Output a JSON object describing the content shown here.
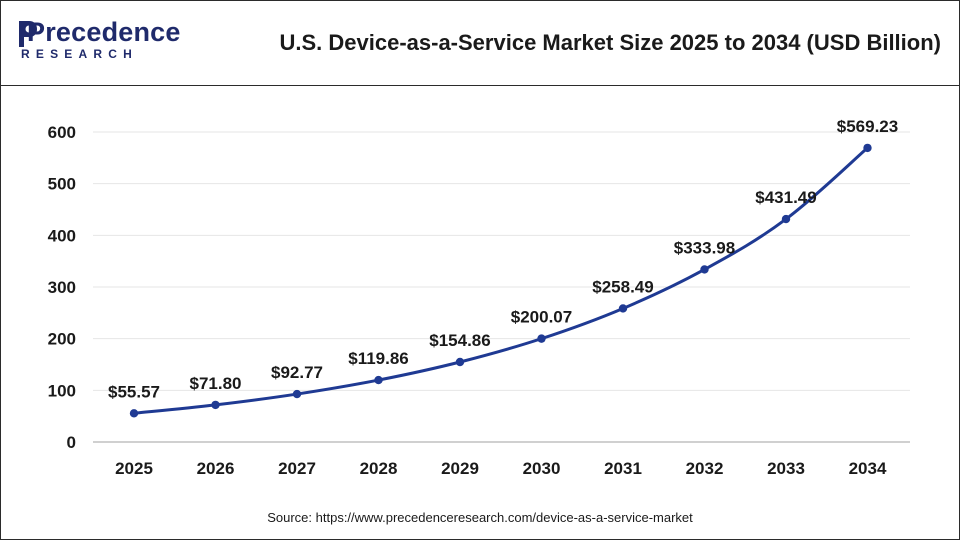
{
  "header": {
    "logo_main": "Precedence",
    "logo_sub": "RESEARCH",
    "title": "U.S. Device-as-a-Service Market Size 2025 to 2034 (USD Billion)"
  },
  "chart_data": {
    "type": "line",
    "title": "U.S. Device-as-a-Service Market Size 2025 to 2034 (USD Billion)",
    "xlabel": "",
    "ylabel": "",
    "categories": [
      "2025",
      "2026",
      "2027",
      "2028",
      "2029",
      "2030",
      "2031",
      "2032",
      "2033",
      "2034"
    ],
    "values": [
      55.57,
      71.8,
      92.77,
      119.86,
      154.86,
      200.07,
      258.49,
      333.98,
      431.49,
      569.23
    ],
    "data_labels": [
      "$55.57",
      "$71.80",
      "$92.77",
      "$119.86",
      "$154.86",
      "$200.07",
      "$258.49",
      "$333.98",
      "$431.49",
      "$569.23"
    ],
    "ylim": [
      0,
      600
    ],
    "yticks": [
      0,
      100,
      200,
      300,
      400,
      500,
      600
    ],
    "grid": true,
    "line_color": "#1f3a93"
  },
  "footer": {
    "source": "Source: https://www.precedenceresearch.com/device-as-a-service-market"
  }
}
